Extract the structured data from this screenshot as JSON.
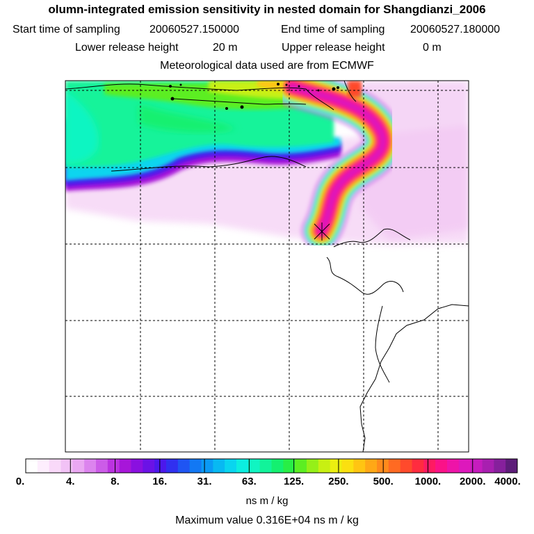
{
  "title": "olumn-integrated emission sensitivity in nested domain for Shangdianzi_2006",
  "sampling": {
    "start_label": "Start time of sampling",
    "start_value": "20060527.150000",
    "end_label": "End time of sampling",
    "end_value": "20060527.180000"
  },
  "release": {
    "lower_label": "Lower release height",
    "lower_value": "20 m",
    "upper_label": "Upper release height",
    "upper_value": "0 m"
  },
  "meteo": "Meteorological data used are from ECMWF",
  "colorbar": {
    "labels": [
      "0.",
      "4.",
      "8.",
      "16.",
      "31.",
      "63.",
      "125.",
      "250.",
      "500.",
      "1000.",
      "2000.",
      "4000."
    ],
    "colors": [
      "#ffffff",
      "#fdeefd",
      "#f9d9f9",
      "#f2c2f6",
      "#eaa8f2",
      "#dc84ee",
      "#cc5ce8",
      "#bb33e0",
      "#a716d9",
      "#8a10e0",
      "#6b12e6",
      "#4c18ec",
      "#3030f0",
      "#1f55f3",
      "#1278f4",
      "#0a9af5",
      "#08b9f2",
      "#09d5ef",
      "#0ceee0",
      "#10f5c2",
      "#12f39a",
      "#14f070",
      "#28ee46",
      "#5cee22",
      "#95f018",
      "#c8f012",
      "#ecef10",
      "#fbe010",
      "#ffc512",
      "#ffa816",
      "#ff8a1c",
      "#ff6a22",
      "#ff4a2c",
      "#ff2c3f",
      "#ff1a62",
      "#fb1288",
      "#ee14a8",
      "#dd18bc",
      "#c61cbe",
      "#a81fb0",
      "#86209c",
      "#5e1d7a"
    ]
  },
  "units": "ns m / kg",
  "max_label": "Maximum value",
  "max_value": "0.316E+04",
  "max_units": "ns m / kg",
  "map": {
    "max_value": 3160,
    "release_site": "Shangdianzi"
  }
}
